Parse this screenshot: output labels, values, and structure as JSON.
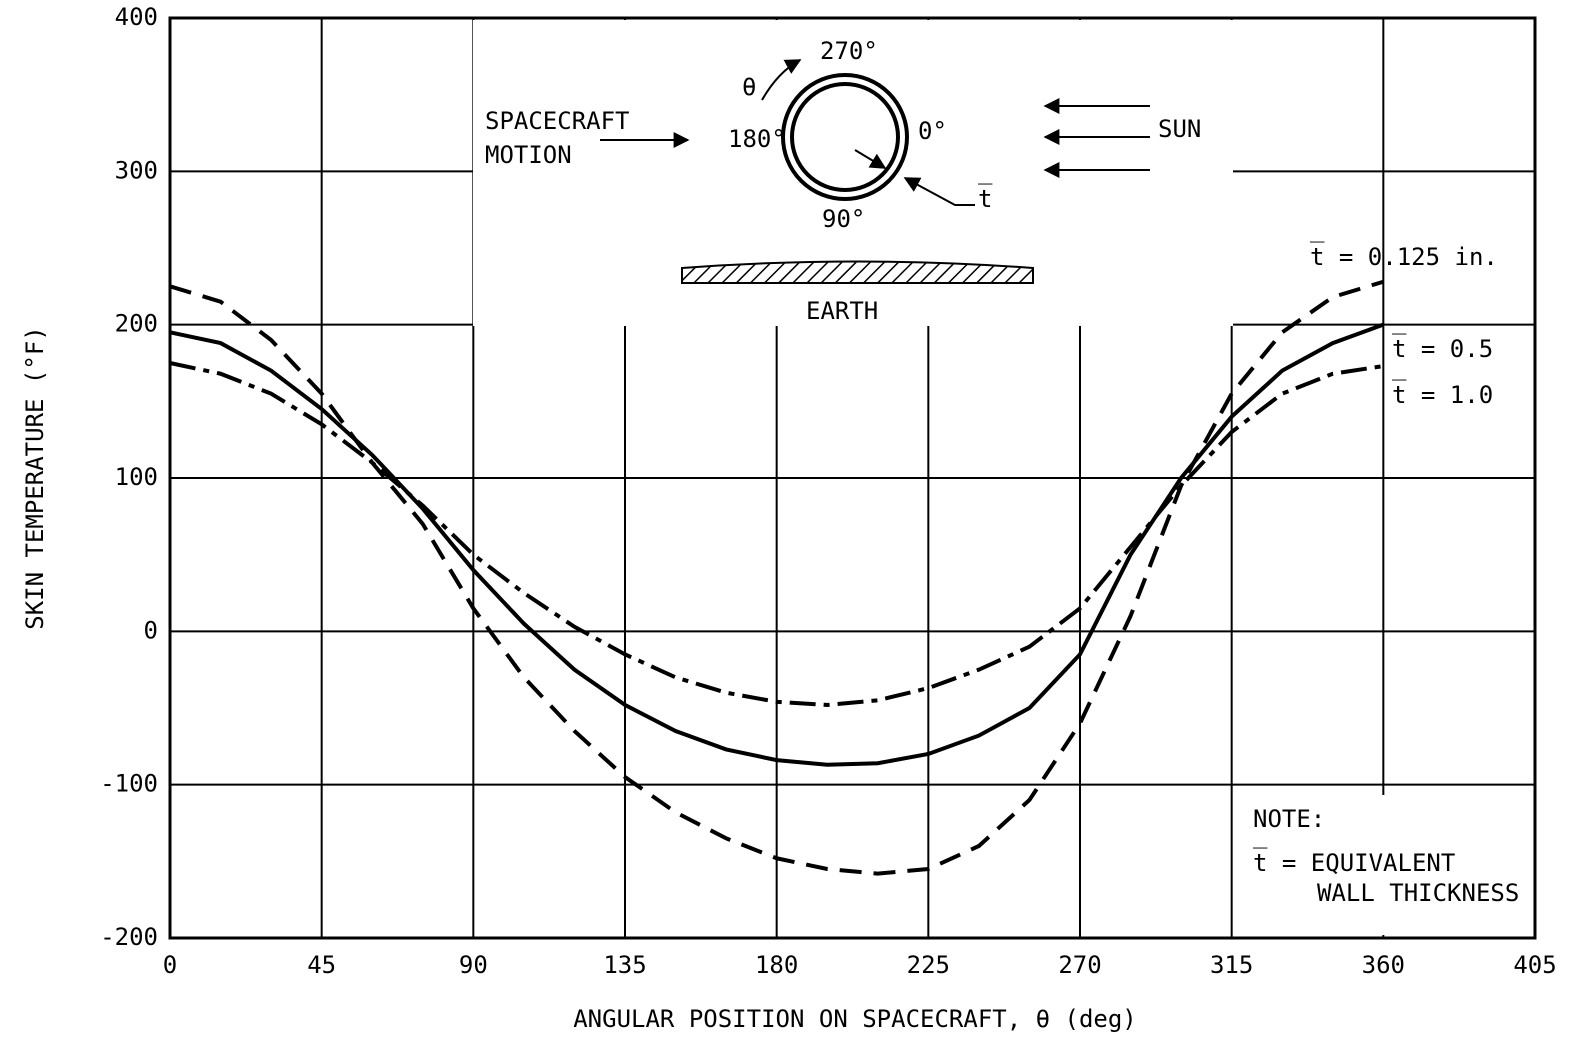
{
  "chart_data": {
    "type": "line",
    "x_label": "ANGULAR POSITION ON SPACECRAFT, θ (deg)",
    "y_label": "SKIN TEMPERATURE (°F)",
    "x": [
      0,
      15,
      30,
      45,
      60,
      75,
      90,
      105,
      120,
      135,
      150,
      165,
      180,
      195,
      210,
      225,
      240,
      255,
      270,
      285,
      300,
      315,
      330,
      345,
      360
    ],
    "series": [
      {
        "name": "t̅ = 0.125 in.",
        "color": "#000000",
        "style": "dashed",
        "values": [
          225,
          215,
          190,
          155,
          110,
          70,
          15,
          -30,
          -65,
          -95,
          -118,
          -135,
          -148,
          -155,
          -158,
          -155,
          -140,
          -110,
          -60,
          10,
          95,
          155,
          195,
          218,
          228
        ]
      },
      {
        "name": "t̅ = 0.5",
        "color": "#000000",
        "style": "solid",
        "values": [
          195,
          188,
          170,
          145,
          115,
          80,
          40,
          5,
          -25,
          -48,
          -65,
          -77,
          -84,
          -87,
          -86,
          -80,
          -68,
          -50,
          -15,
          50,
          100,
          140,
          170,
          188,
          200
        ]
      },
      {
        "name": "t̅ = 1.0",
        "color": "#000000",
        "style": "dashdot",
        "values": [
          175,
          168,
          155,
          135,
          110,
          82,
          50,
          25,
          3,
          -15,
          -30,
          -40,
          -46,
          -48,
          -45,
          -37,
          -25,
          -10,
          15,
          55,
          95,
          130,
          155,
          168,
          173
        ]
      }
    ],
    "xlim": [
      0,
      405
    ],
    "xticks": [
      0,
      45,
      90,
      135,
      180,
      225,
      270,
      315,
      360,
      405
    ],
    "ylim": [
      -200,
      400
    ],
    "yticks": [
      -200,
      -100,
      0,
      100,
      200,
      300,
      400
    ],
    "grid": true,
    "annotations": [
      "SPACECRAFT",
      "MOTION",
      "270°",
      "θ",
      "180°",
      "0°",
      "90°",
      "t̅",
      "SUN",
      "EARTH",
      "NOTE:",
      "t̅ = EQUIVALENT",
      "WALL THICKNESS"
    ]
  }
}
